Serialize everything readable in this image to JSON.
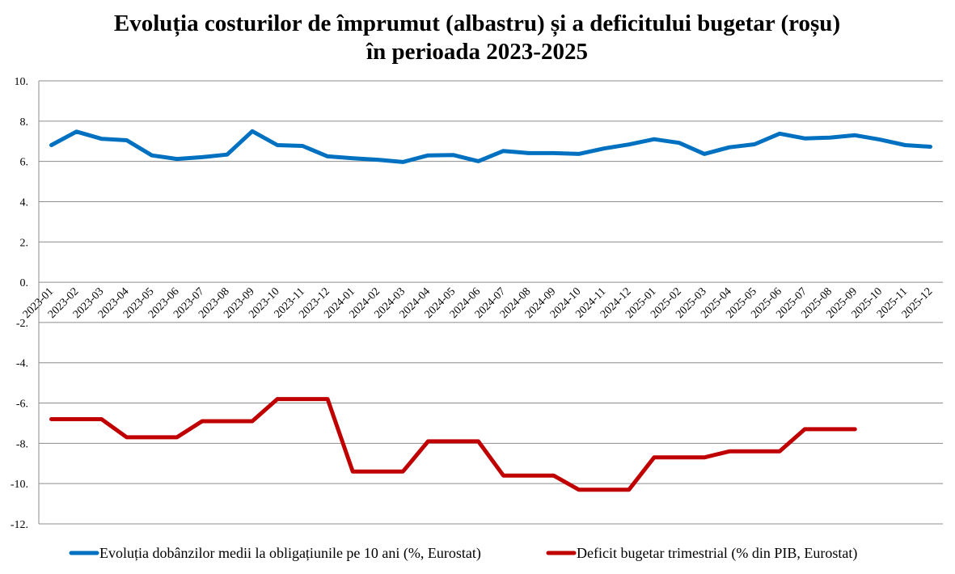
{
  "chart_data": {
    "type": "line",
    "title": [
      "Evoluția costurilor de împrumut (albastru) și a deficitului bugetar (roșu)",
      "în perioada 2023-2025"
    ],
    "xlabel": "",
    "ylabel": "",
    "ylim": [
      -12,
      10
    ],
    "yticks": [
      10,
      8,
      6,
      4,
      2,
      0,
      -2,
      -4,
      -6,
      -8,
      -10,
      -12
    ],
    "ytick_labels": [
      "10.",
      "8.",
      "6.",
      "4.",
      "2.",
      "0.",
      "-2.",
      "-4.",
      "-6.",
      "-8.",
      "-10.",
      "-12."
    ],
    "grid": true,
    "legend_position": "bottom",
    "categories": [
      "2023-01",
      "2023-02",
      "2023-03",
      "2023-04",
      "2023-05",
      "2023-06",
      "2023-07",
      "2023-08",
      "2023-09",
      "2023-10",
      "2023-11",
      "2023-12",
      "2024-01",
      "2024-02",
      "2024-03",
      "2024-04",
      "2024-05",
      "2024-06",
      "2024-07",
      "2024-08",
      "2024-09",
      "2024-10",
      "2024-11",
      "2024-12",
      "2025-01",
      "2025-02",
      "2025-03",
      "2025-04",
      "2025-05",
      "2025-06",
      "2025-07",
      "2025-08",
      "2025-09",
      "2025-10",
      "2025-11",
      "2025-12"
    ],
    "series": [
      {
        "name": "Evoluția dobânzilor medii la obligațiunile pe 10 ani (%, Eurostat)",
        "color": "#0070C0",
        "values": [
          6.81,
          7.48,
          7.12,
          7.05,
          6.3,
          6.12,
          6.21,
          6.34,
          7.5,
          6.81,
          6.77,
          6.25,
          6.16,
          6.08,
          5.97,
          6.3,
          6.32,
          6.01,
          6.52,
          6.41,
          6.41,
          6.37,
          6.64,
          6.84,
          7.1,
          6.92,
          6.37,
          6.7,
          6.85,
          7.38,
          7.14,
          7.18,
          7.3,
          7.08,
          6.81,
          6.73
        ]
      },
      {
        "name": "Deficit bugetar trimestrial (% din PIB, Eurostat)",
        "color": "#C00000",
        "values": [
          -6.8,
          -6.8,
          -6.8,
          -7.7,
          -7.7,
          -7.7,
          -6.9,
          -6.9,
          -6.9,
          -5.8,
          -5.8,
          -5.8,
          -9.4,
          -9.4,
          -9.4,
          -7.9,
          -7.9,
          -7.9,
          -9.6,
          -9.6,
          -9.6,
          -10.3,
          -10.3,
          -10.3,
          -8.7,
          -8.7,
          -8.7,
          -8.4,
          -8.4,
          -8.4,
          -7.3,
          -7.3,
          -7.3,
          null,
          null,
          null
        ]
      }
    ]
  }
}
